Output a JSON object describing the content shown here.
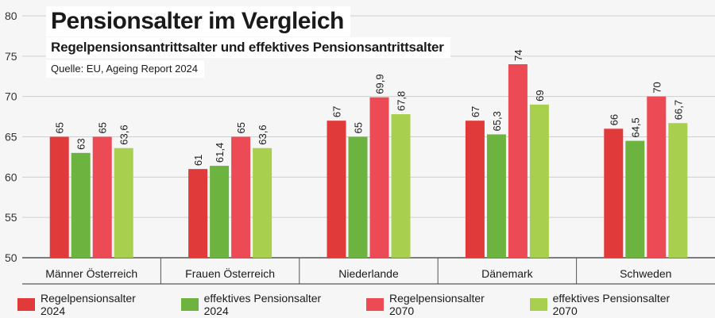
{
  "header": {
    "title": "Pensionsalter im Vergleich",
    "subtitle": "Regelpensionsantrittsalter und effektives Pensionsantrittsalter",
    "source": "Quelle: EU, Ageing Report 2024"
  },
  "colors": {
    "regel2024": "#e03a3a",
    "eff2024": "#6db33f",
    "regel2070": "#ec4a55",
    "eff2070": "#a8cf4e",
    "grid": "#cfcfcf",
    "background": "#f6f6f6"
  },
  "chart_data": {
    "type": "bar",
    "title": "Pensionsalter im Vergleich",
    "categories": [
      "Männer Österreich",
      "Frauen Österreich",
      "Niederlande",
      "Dänemark",
      "Schweden"
    ],
    "series": [
      {
        "name": "Regelpensionsalter 2024",
        "values": [
          65,
          61,
          67,
          67,
          66
        ],
        "labels": [
          "65",
          "61",
          "67",
          "67",
          "66"
        ],
        "color": "#e03a3a"
      },
      {
        "name": "effektives Pensionsalter 2024",
        "values": [
          63,
          61.4,
          65,
          65.3,
          64.5
        ],
        "labels": [
          "63",
          "61,4",
          "65",
          "65,3",
          "64,5"
        ],
        "color": "#6db33f"
      },
      {
        "name": "Regelpensionsalter 2070",
        "values": [
          65,
          65,
          69.9,
          74,
          70
        ],
        "labels": [
          "65",
          "65",
          "69,9",
          "74",
          "70"
        ],
        "color": "#ec4a55"
      },
      {
        "name": "effektives Pensionsalter 2070",
        "values": [
          63.6,
          63.6,
          67.8,
          69,
          66.7
        ],
        "labels": [
          "63,6",
          "63,6",
          "67,8",
          "69",
          "66,7"
        ],
        "color": "#a8cf4e"
      }
    ],
    "yticks": [
      "50",
      "55",
      "60",
      "65",
      "70",
      "75",
      "80"
    ],
    "ylim": [
      50,
      80
    ],
    "xlabel": "",
    "ylabel": "",
    "grid": true,
    "legend": "bottom"
  }
}
